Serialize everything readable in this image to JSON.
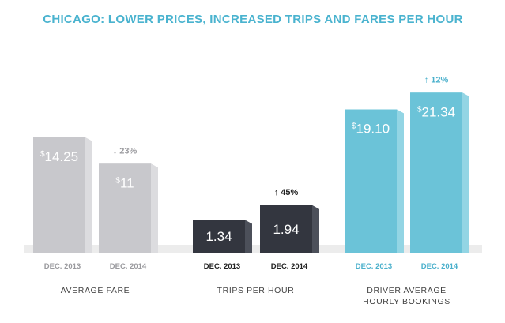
{
  "chart_data": {
    "type": "bar",
    "title": "CHICAGO: LOWER PRICES, INCREASED TRIPS AND FARES PER HOUR",
    "groups": [
      {
        "name": "AVERAGE FARE",
        "label_lines": [
          "AVERAGE FARE"
        ],
        "color_front": "#c8c8cc",
        "color_side": "#dcdcdf",
        "label_color": "#9a9a9e",
        "change": {
          "direction": "down",
          "text": "23%"
        },
        "bars": [
          {
            "category": "DEC. 2013",
            "value": 14.25,
            "prefix": "$",
            "display": "14.25"
          },
          {
            "category": "DEC. 2014",
            "value": 11,
            "prefix": "$",
            "display": "11"
          }
        ]
      },
      {
        "name": "TRIPS PER HOUR",
        "label_lines": [
          "TRIPS PER HOUR"
        ],
        "color_front": "#33363f",
        "color_side": "#4c505a",
        "label_color": "#222222",
        "change": {
          "direction": "up",
          "text": "45%"
        },
        "bars": [
          {
            "category": "DEC. 2013",
            "value": 1.34,
            "prefix": "",
            "display": "1.34"
          },
          {
            "category": "DEC. 2014",
            "value": 1.94,
            "prefix": "",
            "display": "1.94"
          }
        ]
      },
      {
        "name": "DRIVER AVERAGE HOURLY BOOKINGS",
        "label_lines": [
          "DRIVER AVERAGE",
          "HOURLY BOOKINGS"
        ],
        "color_front": "#6bc3d8",
        "color_side": "#93d5e4",
        "label_color": "#4ab0cc",
        "change": {
          "direction": "up",
          "text": "12%"
        },
        "bars": [
          {
            "category": "DEC. 2013",
            "value": 19.1,
            "prefix": "$",
            "display": "19.10"
          },
          {
            "category": "DEC. 2014",
            "value": 21.34,
            "prefix": "$",
            "display": "21.34"
          }
        ]
      }
    ],
    "colors": {
      "title": "#4ab3cf",
      "floor": "#ececec",
      "change_down": "#9a9a9e",
      "change_up_dark": "#222222",
      "change_up_blue": "#4ab0cc"
    }
  }
}
